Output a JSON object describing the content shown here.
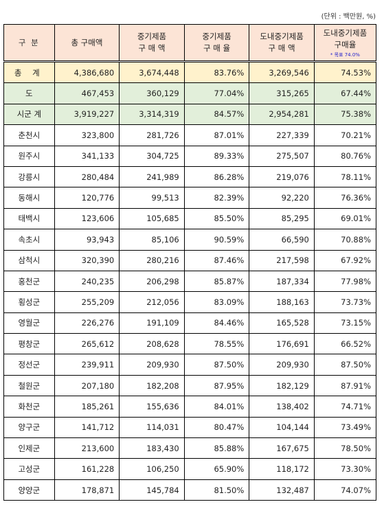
{
  "unit_note": "(단위 : 백만원, %)",
  "headers": {
    "category": "구 분",
    "total_purchase": "총 구매액",
    "sme_purchase_line1": "중기제품",
    "sme_purchase_line2": "구 매 액",
    "sme_ratio_line1": "중기제품",
    "sme_ratio_line2": "구 매 율",
    "local_sme_purchase_line1": "도내중기제품",
    "local_sme_purchase_line2": "구 매 액",
    "local_sme_ratio_line1": "도내중기제품",
    "local_sme_ratio_line2": "구매율",
    "local_sme_ratio_note": "* 목표 74.0%"
  },
  "rows": [
    {
      "name": "총 계",
      "total": "4,386,680",
      "sme": "3,674,448",
      "sme_ratio": "83.76%",
      "local": "3,269,546",
      "local_ratio": "74.53%"
    },
    {
      "name": "도",
      "total": "467,453",
      "sme": "360,129",
      "sme_ratio": "77.04%",
      "local": "315,265",
      "local_ratio": "67.44%"
    },
    {
      "name": "시군 계",
      "total": "3,919,227",
      "sme": "3,314,319",
      "sme_ratio": "84.57%",
      "local": "2,954,281",
      "local_ratio": "75.38%"
    },
    {
      "name": "춘천시",
      "total": "323,800",
      "sme": "281,726",
      "sme_ratio": "87.01%",
      "local": "227,339",
      "local_ratio": "70.21%"
    },
    {
      "name": "원주시",
      "total": "341,133",
      "sme": "304,725",
      "sme_ratio": "89.33%",
      "local": "275,507",
      "local_ratio": "80.76%"
    },
    {
      "name": "강릉시",
      "total": "280,484",
      "sme": "241,989",
      "sme_ratio": "86.28%",
      "local": "219,076",
      "local_ratio": "78.11%"
    },
    {
      "name": "동해시",
      "total": "120,776",
      "sme": "99,513",
      "sme_ratio": "82.39%",
      "local": "92,220",
      "local_ratio": "76.36%"
    },
    {
      "name": "태백시",
      "total": "123,606",
      "sme": "105,685",
      "sme_ratio": "85.50%",
      "local": "85,295",
      "local_ratio": "69.01%"
    },
    {
      "name": "속초시",
      "total": "93,943",
      "sme": "85,106",
      "sme_ratio": "90.59%",
      "local": "66,590",
      "local_ratio": "70.88%"
    },
    {
      "name": "삼척시",
      "total": "320,390",
      "sme": "280,216",
      "sme_ratio": "87.46%",
      "local": "217,598",
      "local_ratio": "67.92%"
    },
    {
      "name": "홍천군",
      "total": "240,235",
      "sme": "206,298",
      "sme_ratio": "85.87%",
      "local": "187,334",
      "local_ratio": "77.98%"
    },
    {
      "name": "횡성군",
      "total": "255,209",
      "sme": "212,056",
      "sme_ratio": "83.09%",
      "local": "188,163",
      "local_ratio": "73.73%"
    },
    {
      "name": "영월군",
      "total": "226,276",
      "sme": "191,109",
      "sme_ratio": "84.46%",
      "local": "165,528",
      "local_ratio": "73.15%"
    },
    {
      "name": "평창군",
      "total": "265,612",
      "sme": "208,628",
      "sme_ratio": "78.55%",
      "local": "176,691",
      "local_ratio": "66.52%"
    },
    {
      "name": "정선군",
      "total": "239,911",
      "sme": "209,930",
      "sme_ratio": "87.50%",
      "local": "209,930",
      "local_ratio": "87.50%"
    },
    {
      "name": "철원군",
      "total": "207,180",
      "sme": "182,208",
      "sme_ratio": "87.95%",
      "local": "182,129",
      "local_ratio": "87.91%"
    },
    {
      "name": "화천군",
      "total": "185,261",
      "sme": "155,636",
      "sme_ratio": "84.01%",
      "local": "138,402",
      "local_ratio": "74.71%"
    },
    {
      "name": "양구군",
      "total": "141,712",
      "sme": "114,031",
      "sme_ratio": "80.47%",
      "local": "104,144",
      "local_ratio": "73.49%"
    },
    {
      "name": "인제군",
      "total": "213,600",
      "sme": "183,430",
      "sme_ratio": "85.88%",
      "local": "167,675",
      "local_ratio": "78.50%"
    },
    {
      "name": "고성군",
      "total": "161,228",
      "sme": "106,250",
      "sme_ratio": "65.90%",
      "local": "118,172",
      "local_ratio": "73.30%"
    },
    {
      "name": "양양군",
      "total": "178,871",
      "sme": "145,784",
      "sme_ratio": "81.50%",
      "local": "132,487",
      "local_ratio": "74.07%"
    }
  ],
  "colors": {
    "header_bg": "#fce4d6",
    "total_bg": "#fff2cc",
    "subtotal_bg": "#e2efda",
    "note_color": "#2222cc"
  }
}
